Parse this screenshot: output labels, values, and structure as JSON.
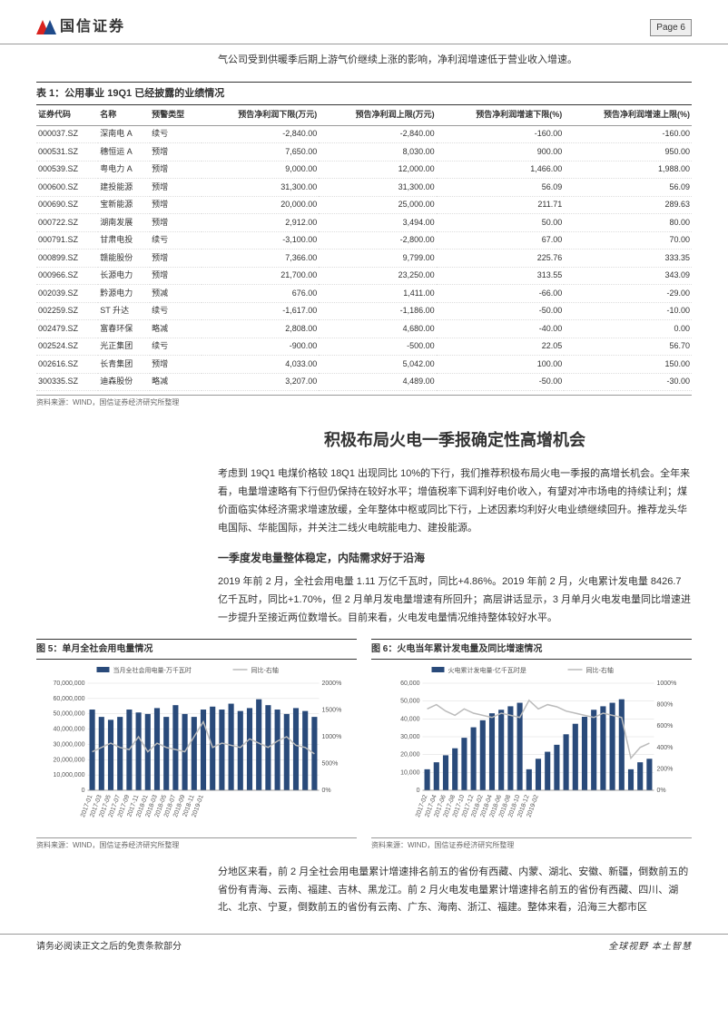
{
  "header": {
    "logo_text": "国信证券",
    "page_label": "Page   6"
  },
  "intro": "气公司受到供暖季后期上游气价继续上涨的影响，净利润增速低于营业收入增速。",
  "table1": {
    "title": "表 1：公用事业 19Q1 已经披露的业绩情况",
    "columns": [
      "证券代码",
      "名称",
      "预警类型",
      "预告净利润下限(万元)",
      "预告净利润上限(万元)",
      "预告净利润增速下限(%)",
      "预告净利润增速上限(%)"
    ],
    "rows": [
      [
        "000037.SZ",
        "深南电 A",
        "续亏",
        "-2,840.00",
        "-2,840.00",
        "-160.00",
        "-160.00"
      ],
      [
        "000531.SZ",
        "穗恒运 A",
        "预增",
        "7,650.00",
        "8,030.00",
        "900.00",
        "950.00"
      ],
      [
        "000539.SZ",
        "粤电力 A",
        "预增",
        "9,000.00",
        "12,000.00",
        "1,466.00",
        "1,988.00"
      ],
      [
        "000600.SZ",
        "建投能源",
        "预增",
        "31,300.00",
        "31,300.00",
        "56.09",
        "56.09"
      ],
      [
        "000690.SZ",
        "宝新能源",
        "预增",
        "20,000.00",
        "25,000.00",
        "211.71",
        "289.63"
      ],
      [
        "000722.SZ",
        "湖南发展",
        "预增",
        "2,912.00",
        "3,494.00",
        "50.00",
        "80.00"
      ],
      [
        "000791.SZ",
        "甘肃电投",
        "续亏",
        "-3,100.00",
        "-2,800.00",
        "67.00",
        "70.00"
      ],
      [
        "000899.SZ",
        "赣能股份",
        "预增",
        "7,366.00",
        "9,799.00",
        "225.76",
        "333.35"
      ],
      [
        "000966.SZ",
        "长源电力",
        "预增",
        "21,700.00",
        "23,250.00",
        "313.55",
        "343.09"
      ],
      [
        "002039.SZ",
        "黔源电力",
        "预减",
        "676.00",
        "1,411.00",
        "-66.00",
        "-29.00"
      ],
      [
        "002259.SZ",
        "ST 升达",
        "续亏",
        "-1,617.00",
        "-1,186.00",
        "-50.00",
        "-10.00"
      ],
      [
        "002479.SZ",
        "富春环保",
        "略减",
        "2,808.00",
        "4,680.00",
        "-40.00",
        "0.00"
      ],
      [
        "002524.SZ",
        "光正集团",
        "续亏",
        "-900.00",
        "-500.00",
        "22.05",
        "56.70"
      ],
      [
        "002616.SZ",
        "长青集团",
        "预增",
        "4,033.00",
        "5,042.00",
        "100.00",
        "150.00"
      ],
      [
        "300335.SZ",
        "迪森股份",
        "略减",
        "3,207.00",
        "4,489.00",
        "-50.00",
        "-30.00"
      ]
    ],
    "source": "资料来源：WIND，国信证券经济研究所整理"
  },
  "section": {
    "h1": "积极布局火电一季报确定性高增机会",
    "p1": "考虑到 19Q1 电煤价格较 18Q1 出现同比 10%的下行，我们推荐积极布局火电一季报的高增长机会。全年来看，电量增速略有下行但仍保持在较好水平；增值税率下调利好电价收入，有望对冲市场电的持续让利；煤价面临实体经济需求增速放缓，全年整体中枢或同比下行，上述因素均利好火电业绩继续回升。推荐龙头华电国际、华能国际，并关注二线火电皖能电力、建投能源。",
    "h2": "一季度发电量整体稳定，内陆需求好于沿海",
    "p2": "2019 年前 2 月，全社会用电量 1.11 万亿千瓦时，同比+4.86%。2019 年前 2 月，火电累计发电量 8426.7 亿千瓦时，同比+1.70%，但 2 月单月发电量增速有所回升；高层讲话显示，3 月单月火电发电量同比增速进一步提升至接近两位数增长。目前来看，火电发电量情况维持整体较好水平。",
    "p3": "分地区来看，前 2 月全社会用电量累计增速排名前五的省份有西藏、内蒙、湖北、安徽、新疆，倒数前五的省份有青海、云南、福建、吉林、黑龙江。前 2 月火电发电量累计增速排名前五的省份有西藏、四川、湖北、北京、宁夏，倒数前五的省份有云南、广东、海南、浙江、福建。整体来看，沿海三大都市区"
  },
  "chart5": {
    "title": "图 5：单月全社会用电量情况",
    "legend": [
      "当月全社会用电量-万千瓦时",
      "同比-右轴"
    ],
    "x_labels": [
      "2017-01",
      "2017-03",
      "2017-05",
      "2017-07",
      "2017-09",
      "2017-11",
      "2018-01",
      "2018-03",
      "2018-05",
      "2018-07",
      "2018-09",
      "2018-11",
      "2019-01"
    ],
    "y1_ticks": [
      "0",
      "10,000,000",
      "20,000,000",
      "30,000,000",
      "40,000,000",
      "50,000,000",
      "60,000,000",
      "70,000,000"
    ],
    "y2_ticks": [
      "0%",
      "500%",
      "1000%",
      "1500%",
      "2000%"
    ],
    "bars": [
      55,
      50,
      48,
      50,
      55,
      53,
      52,
      56,
      50,
      58,
      52,
      50,
      55,
      57,
      55,
      59,
      54,
      56,
      62,
      58,
      55,
      52,
      56,
      54,
      50
    ],
    "line": [
      18,
      20,
      22,
      20,
      19,
      25,
      18,
      22,
      20,
      19,
      18,
      25,
      32,
      20,
      22,
      21,
      20,
      24,
      22,
      20,
      23,
      25,
      21,
      20,
      17
    ],
    "bar_color": "#294a7a",
    "line_color": "#bbbbbb",
    "grid_color": "#d9d9d9",
    "bg_color": "#ffffff",
    "source": "资料来源：WIND，国信证券经济研究所整理"
  },
  "chart6": {
    "title": "图 6：火电当年累计发电量及同比增速情况",
    "legend": [
      "火电累计发电量-亿千瓦时是",
      "同比-右轴"
    ],
    "x_labels": [
      "2017-02",
      "2017-04",
      "2017-06",
      "2017-08",
      "2017-10",
      "2017-12",
      "2018-02",
      "2018-04",
      "2018-06",
      "2018-08",
      "2018-10",
      "2018-12",
      "2019-02"
    ],
    "y1_ticks": [
      "0",
      "10,000",
      "20,000",
      "30,000",
      "40,000",
      "50,000",
      "60,000"
    ],
    "y2_ticks": [
      "0%",
      "200%",
      "400%",
      "600%",
      "800%",
      "1000%"
    ],
    "bars": [
      12,
      16,
      20,
      24,
      30,
      36,
      40,
      44,
      46,
      48,
      50,
      12,
      18,
      22,
      26,
      32,
      38,
      42,
      46,
      48,
      50,
      52,
      12,
      16,
      18
    ],
    "line": [
      38,
      40,
      37,
      35,
      38,
      36,
      35,
      34,
      36,
      35,
      34,
      42,
      38,
      40,
      39,
      37,
      36,
      35,
      34,
      36,
      35,
      34,
      15,
      20,
      22
    ],
    "bar_color": "#294a7a",
    "line_color": "#bbbbbb",
    "grid_color": "#d9d9d9",
    "bg_color": "#ffffff",
    "source": "资料来源：WIND，国信证券经济研究所整理"
  },
  "footer": {
    "left": "请务必阅读正文之后的免责条款部分",
    "right": "全球视野  本土智慧"
  },
  "colors": {
    "logo_red": "#d9221e",
    "logo_blue": "#1f4a8a"
  }
}
